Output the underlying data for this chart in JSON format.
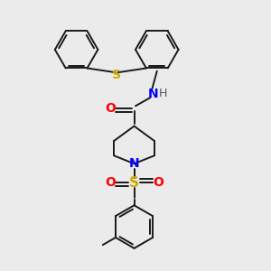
{
  "background_color": "#ebebeb",
  "bond_color": "#1a1a1a",
  "bond_width": 1.4,
  "atom_colors": {
    "O": "#ff0000",
    "N": "#0000ff",
    "S_thio": "#ccaa00",
    "S_sulfonyl": "#ccaa00",
    "H": "#555555",
    "C": "#1a1a1a"
  },
  "figsize": [
    3.0,
    3.0
  ],
  "dpi": 100
}
